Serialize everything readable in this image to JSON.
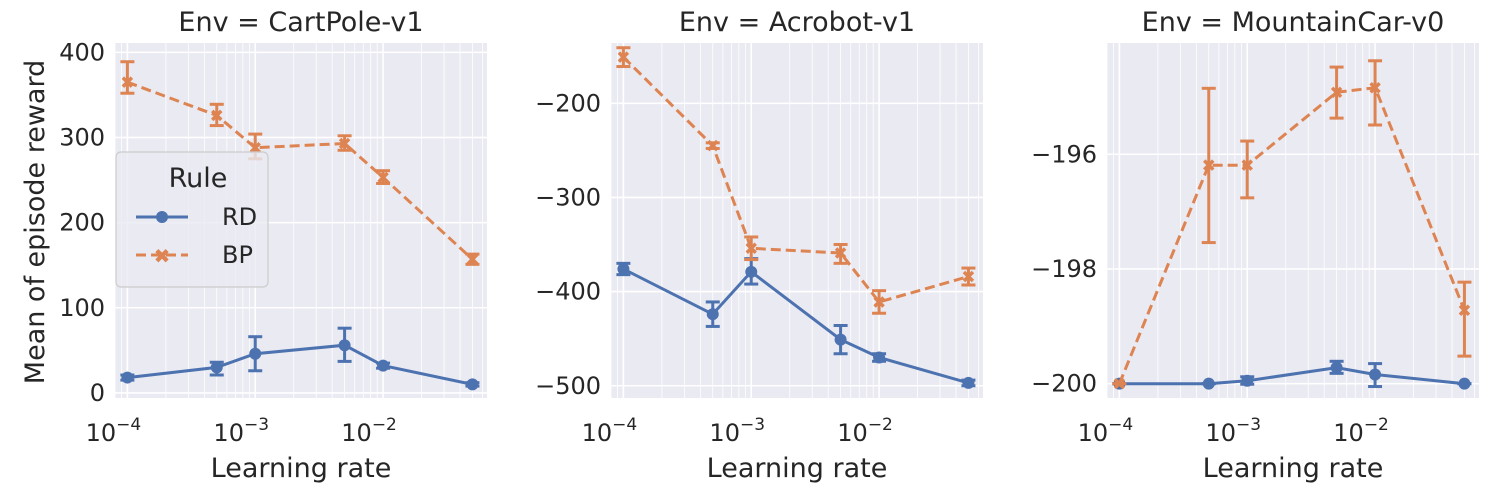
{
  "figure": {
    "ylabel": "Mean of episode reward",
    "xlabel": "Learning rate",
    "legend": {
      "title": "Rule",
      "entries": [
        "RD",
        "BP"
      ],
      "placement": "left-middle (first panel)"
    }
  },
  "colors": {
    "RD": "#4c72b0",
    "BP": "#dd8452",
    "background": "#eaeaf2",
    "grid": "#ffffff"
  },
  "chart_data": [
    {
      "type": "line",
      "title": "Env = CartPole-v1",
      "xlabel": "Learning rate",
      "ylabel": "Mean of episode reward",
      "xscale": "log",
      "x": [
        0.0001,
        0.0005,
        0.001,
        0.005,
        0.01,
        0.05
      ],
      "xlim": [
        8e-05,
        0.065
      ],
      "xticks": [
        {
          "v": 0.0001,
          "label": "10",
          "exp": "−4"
        },
        {
          "v": 0.001,
          "label": "10",
          "exp": "−3"
        },
        {
          "v": 0.01,
          "label": "10",
          "exp": "−2"
        }
      ],
      "ylim": [
        -6,
        411
      ],
      "yticks": [
        {
          "v": 0,
          "label": "0"
        },
        {
          "v": 100,
          "label": "100"
        },
        {
          "v": 200,
          "label": "200"
        },
        {
          "v": 300,
          "label": "300"
        },
        {
          "v": 400,
          "label": "400"
        }
      ],
      "grid": true,
      "series": [
        {
          "name": "RD",
          "values": [
            18,
            30,
            46,
            56,
            32,
            10
          ],
          "lower": [
            15,
            21,
            26,
            37,
            29,
            8
          ],
          "upper": [
            21,
            36,
            66,
            76,
            35,
            12
          ]
        },
        {
          "name": "BP",
          "values": [
            365,
            326,
            288,
            293,
            253,
            157
          ],
          "lower": [
            352,
            314,
            275,
            285,
            246,
            151
          ],
          "upper": [
            389,
            339,
            304,
            302,
            261,
            163
          ]
        }
      ]
    },
    {
      "type": "line",
      "title": "Env = Acrobot-v1",
      "xlabel": "Learning rate",
      "xscale": "log",
      "x": [
        0.0001,
        0.0005,
        0.001,
        0.005,
        0.01,
        0.05
      ],
      "xlim": [
        8e-05,
        0.065
      ],
      "xticks": [
        {
          "v": 0.0001,
          "label": "10",
          "exp": "−4"
        },
        {
          "v": 0.001,
          "label": "10",
          "exp": "−3"
        },
        {
          "v": 0.01,
          "label": "10",
          "exp": "−2"
        }
      ],
      "ylim": [
        -513,
        -136
      ],
      "yticks": [
        {
          "v": -200,
          "label": "−200"
        },
        {
          "v": -300,
          "label": "−300"
        },
        {
          "v": -400,
          "label": "−400"
        },
        {
          "v": -500,
          "label": "−500"
        }
      ],
      "grid": true,
      "series": [
        {
          "name": "RD",
          "values": [
            -376,
            -424,
            -379,
            -451,
            -470,
            -497
          ],
          "lower": [
            -382,
            -437,
            -392,
            -466,
            -474,
            -500
          ],
          "upper": [
            -370,
            -411,
            -365,
            -436,
            -466,
            -494
          ]
        },
        {
          "name": "BP",
          "values": [
            -151,
            -245,
            -354,
            -359,
            -411,
            -384
          ],
          "lower": [
            -161,
            -248,
            -366,
            -370,
            -423,
            -393
          ],
          "upper": [
            -141,
            -242,
            -342,
            -350,
            -399,
            -375
          ]
        }
      ]
    },
    {
      "type": "line",
      "title": "Env = MountainCar-v0",
      "xlabel": "Learning rate",
      "xscale": "log",
      "x": [
        0.0001,
        0.0005,
        0.001,
        0.005,
        0.01,
        0.05
      ],
      "xlim": [
        8e-05,
        0.065
      ],
      "xticks": [
        {
          "v": 0.0001,
          "label": "10",
          "exp": "−4"
        },
        {
          "v": 0.001,
          "label": "10",
          "exp": "−3"
        },
        {
          "v": 0.01,
          "label": "10",
          "exp": "−2"
        }
      ],
      "ylim": [
        -200.25,
        -194.06
      ],
      "yticks": [
        {
          "v": -196,
          "label": "−196"
        },
        {
          "v": -198,
          "label": "−198"
        },
        {
          "v": -200,
          "label": "−200"
        }
      ],
      "grid": true,
      "series": [
        {
          "name": "RD",
          "values": [
            -200,
            -200,
            -199.95,
            -199.72,
            -199.84,
            -200
          ],
          "lower": [
            -200,
            -200,
            -200.01,
            -199.82,
            -200.05,
            -200
          ],
          "upper": [
            -200,
            -200,
            -199.88,
            -199.61,
            -199.65,
            -200
          ]
        },
        {
          "name": "BP",
          "values": [
            -200,
            -196.19,
            -196.19,
            -194.92,
            -194.84,
            -198.72
          ],
          "lower": [
            -200,
            -197.54,
            -196.76,
            -195.37,
            -195.49,
            -199.52
          ],
          "upper": [
            -200,
            -194.85,
            -195.77,
            -194.48,
            -194.37,
            -198.23
          ]
        }
      ]
    }
  ]
}
